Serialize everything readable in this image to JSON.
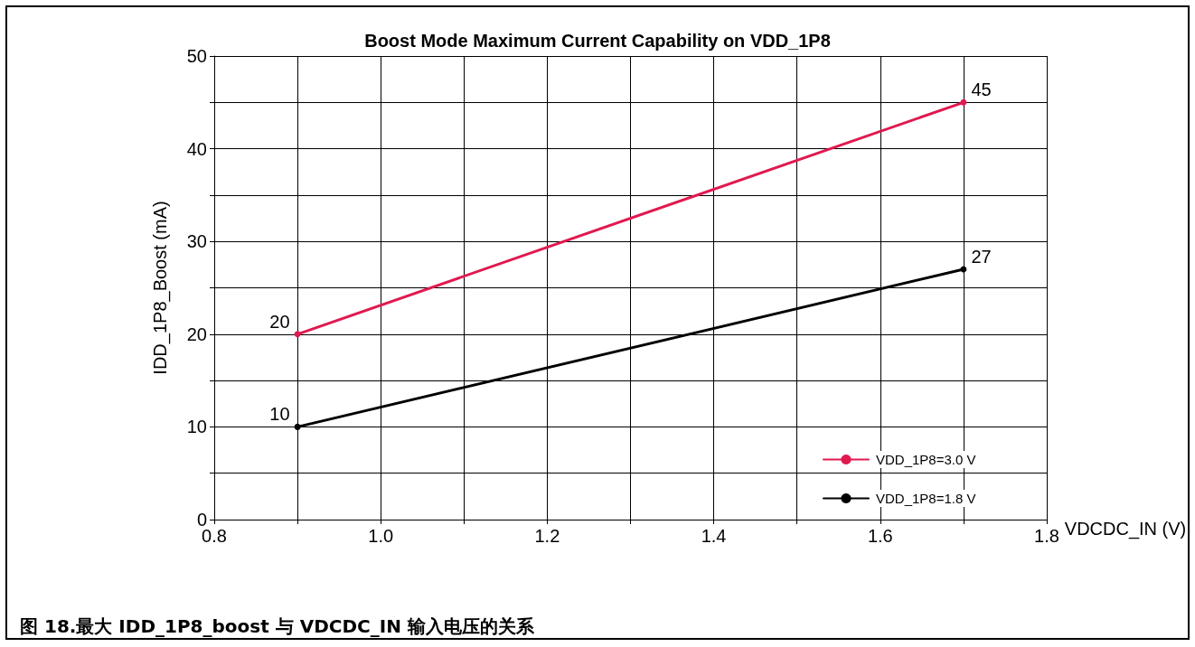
{
  "chart_data": {
    "type": "line",
    "title": "Boost Mode Maximum Current Capability on VDD_1P8",
    "xlabel": "VDCDC_IN (V)",
    "ylabel": "IDD_1P8_Boost (mA)",
    "x": [
      0.9,
      1.7
    ],
    "series": [
      {
        "name": "VDD_1P8=3.0 V",
        "color": "#e0194f",
        "values": [
          20,
          45
        ]
      },
      {
        "name": "VDD_1P8=1.8 V",
        "color": "#000000",
        "values": [
          10,
          27
        ]
      }
    ],
    "xlim": [
      0.8,
      1.8
    ],
    "xticks": [
      {
        "value": 0.8,
        "label": "0.8"
      },
      {
        "value": 0.9,
        "label": null
      },
      {
        "value": 1.0,
        "label": "1.0"
      },
      {
        "value": 1.1,
        "label": null
      },
      {
        "value": 1.2,
        "label": "1.2"
      },
      {
        "value": 1.3,
        "label": null
      },
      {
        "value": 1.4,
        "label": "1.4"
      },
      {
        "value": 1.5,
        "label": null
      },
      {
        "value": 1.6,
        "label": "1.6"
      },
      {
        "value": 1.7,
        "label": null
      },
      {
        "value": 1.8,
        "label": "1.8"
      }
    ],
    "ylim": [
      0,
      50
    ],
    "yticks": [
      0,
      {
        "value": 5,
        "label": null
      },
      10,
      {
        "value": 15,
        "label": null
      },
      20,
      {
        "value": 25,
        "label": null
      },
      30,
      {
        "value": 35,
        "label": null
      },
      40,
      {
        "value": 45,
        "label": null
      },
      50
    ],
    "grid": true,
    "legend": "bottom right",
    "marker": "circle",
    "line_style": "solid",
    "data_labels": true,
    "annotations": [
      "图 18.最大 IDD_1P8_boost 与 VDCDC_IN 输入电压的关系"
    ]
  }
}
